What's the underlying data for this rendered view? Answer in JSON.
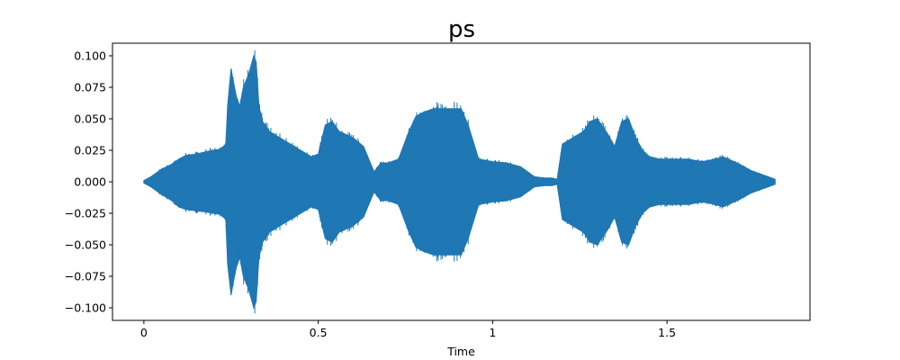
{
  "chart_data": {
    "type": "area",
    "title": "ps",
    "xlabel": "Time",
    "ylabel": "",
    "xlim": [
      -0.09,
      1.91
    ],
    "ylim": [
      -0.11,
      0.11
    ],
    "x_ticks": [
      0,
      0.5,
      1,
      1.5
    ],
    "x_tick_labels": [
      "0",
      "0.5",
      "1",
      "1.5"
    ],
    "y_ticks": [
      -0.1,
      -0.075,
      -0.05,
      -0.025,
      0,
      0.025,
      0.05,
      0.075,
      0.1
    ],
    "y_tick_labels": [
      "−0.100",
      "−0.075",
      "−0.050",
      "−0.025",
      "0.000",
      "0.025",
      "0.050",
      "0.075",
      "0.100"
    ],
    "grid": false,
    "legend": "none",
    "color": "#1f77b4",
    "series": [
      {
        "x": [
          0.0,
          0.02,
          0.05,
          0.08,
          0.1,
          0.12,
          0.15,
          0.18,
          0.2,
          0.22,
          0.235,
          0.24,
          0.25,
          0.255,
          0.265,
          0.275,
          0.285,
          0.3,
          0.315,
          0.322,
          0.33,
          0.34,
          0.36,
          0.39,
          0.42,
          0.45,
          0.48,
          0.5,
          0.52,
          0.54,
          0.56,
          0.6,
          0.63,
          0.66,
          0.68,
          0.7,
          0.73,
          0.76,
          0.78,
          0.8,
          0.83,
          0.86,
          0.89,
          0.91,
          0.93,
          0.96,
          1.0,
          1.04,
          1.08,
          1.12,
          1.15,
          1.17,
          1.185,
          1.2,
          1.23,
          1.26,
          1.28,
          1.3,
          1.33,
          1.35,
          1.37,
          1.39,
          1.41,
          1.43,
          1.45,
          1.48,
          1.52,
          1.56,
          1.6,
          1.64,
          1.66,
          1.7,
          1.74,
          1.77,
          1.79,
          1.81
        ],
        "upper": [
          0.001,
          0.004,
          0.01,
          0.014,
          0.018,
          0.021,
          0.022,
          0.024,
          0.025,
          0.026,
          0.03,
          0.06,
          0.09,
          0.082,
          0.068,
          0.06,
          0.075,
          0.085,
          0.1,
          0.095,
          0.06,
          0.048,
          0.04,
          0.035,
          0.03,
          0.025,
          0.02,
          0.022,
          0.045,
          0.048,
          0.04,
          0.035,
          0.028,
          0.008,
          0.015,
          0.015,
          0.018,
          0.04,
          0.052,
          0.055,
          0.058,
          0.058,
          0.058,
          0.058,
          0.045,
          0.018,
          0.016,
          0.015,
          0.012,
          0.004,
          0.003,
          0.003,
          0.002,
          0.03,
          0.035,
          0.04,
          0.048,
          0.05,
          0.038,
          0.028,
          0.048,
          0.05,
          0.035,
          0.025,
          0.02,
          0.018,
          0.018,
          0.018,
          0.016,
          0.018,
          0.02,
          0.015,
          0.009,
          0.006,
          0.004,
          0.002
        ],
        "lower": [
          -0.001,
          -0.004,
          -0.01,
          -0.015,
          -0.02,
          -0.022,
          -0.023,
          -0.024,
          -0.025,
          -0.026,
          -0.03,
          -0.065,
          -0.09,
          -0.082,
          -0.068,
          -0.06,
          -0.075,
          -0.085,
          -0.1,
          -0.095,
          -0.06,
          -0.048,
          -0.04,
          -0.035,
          -0.03,
          -0.025,
          -0.02,
          -0.022,
          -0.045,
          -0.048,
          -0.04,
          -0.035,
          -0.028,
          -0.008,
          -0.015,
          -0.015,
          -0.018,
          -0.04,
          -0.052,
          -0.055,
          -0.058,
          -0.058,
          -0.058,
          -0.058,
          -0.045,
          -0.018,
          -0.016,
          -0.015,
          -0.012,
          -0.004,
          -0.003,
          -0.003,
          -0.002,
          -0.03,
          -0.035,
          -0.04,
          -0.048,
          -0.05,
          -0.038,
          -0.028,
          -0.048,
          -0.05,
          -0.035,
          -0.025,
          -0.02,
          -0.018,
          -0.018,
          -0.018,
          -0.016,
          -0.018,
          -0.02,
          -0.015,
          -0.009,
          -0.006,
          -0.004,
          -0.002
        ]
      }
    ]
  }
}
